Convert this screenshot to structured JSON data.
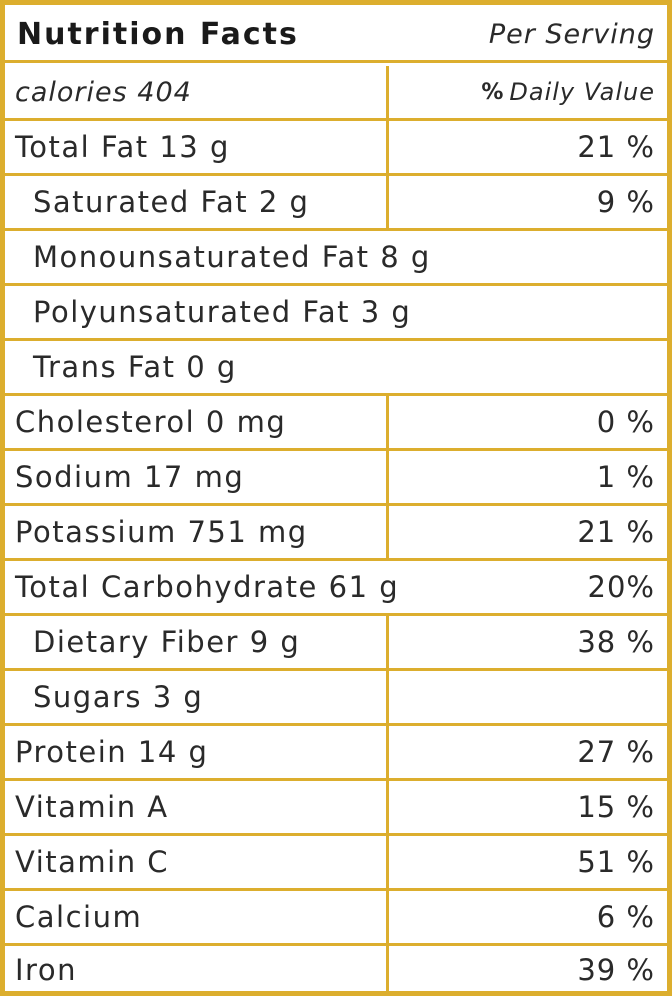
{
  "header": {
    "title": "Nutrition Facts",
    "serving": "Per Serving"
  },
  "subheader": {
    "calories": "calories 404",
    "dv_symbol": "%",
    "dv_label": "Daily Value"
  },
  "nutrients": [
    {
      "name": "Total Fat 13 g",
      "dv": "21 %"
    },
    {
      "name": "Saturated Fat 2 g",
      "dv": "9 %"
    },
    {
      "name": "Monounsaturated Fat 8 g"
    },
    {
      "name": "Polyunsaturated Fat 3 g"
    },
    {
      "name": "Trans Fat 0 g"
    },
    {
      "name": "Cholesterol 0 mg",
      "dv": "0 %"
    },
    {
      "name": "Sodium 17 mg",
      "dv": "1 %"
    },
    {
      "name": "Potassium 751 mg",
      "dv": "21 %"
    },
    {
      "name": "Total Carbohydrate 61 g",
      "dv": "20%"
    },
    {
      "name": "Dietary Fiber 9 g",
      "dv": "38 %"
    },
    {
      "name": "Sugars 3 g",
      "dv": ""
    },
    {
      "name": "Protein 14 g",
      "dv": "27 %"
    },
    {
      "name": "Vitamin A",
      "dv": "15 %"
    },
    {
      "name": "Vitamin C",
      "dv": "51 %"
    },
    {
      "name": "Calcium",
      "dv": "6 %"
    },
    {
      "name": "Iron",
      "dv": "39 %"
    }
  ],
  "colors": {
    "border": "#dcae2e",
    "text": "#2a2a2a"
  }
}
